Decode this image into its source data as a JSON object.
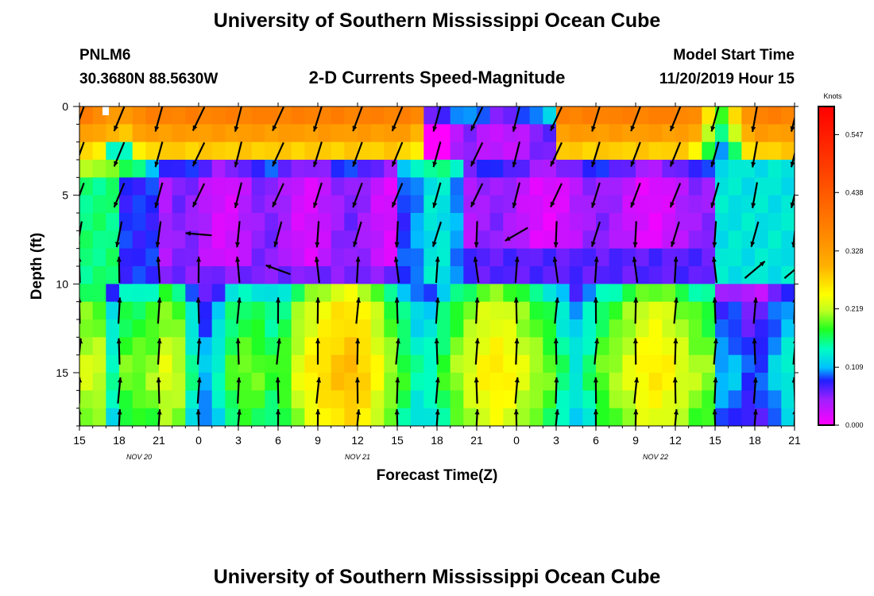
{
  "title_top": "University of Southern Mississippi Ocean Cube",
  "title_bottom": "University of Southern Mississippi Ocean Cube",
  "station": {
    "id": "PNLM6",
    "coords": "30.3680N 88.5630W"
  },
  "model": {
    "label": "Model Start Time",
    "start": "11/20/2019 Hour 15"
  },
  "chart_data": {
    "type": "heatmap",
    "title": "2-D Currents Speed-Magnitude",
    "xlabel": "Forecast Time(Z)",
    "ylabel": "Depth (ft)",
    "x_hours_range": [
      0,
      54
    ],
    "y_range": [
      0,
      18
    ],
    "x_ticks": [
      {
        "h": 0,
        "label": "15"
      },
      {
        "h": 3,
        "label": "18"
      },
      {
        "h": 6,
        "label": "21"
      },
      {
        "h": 9,
        "label": "0"
      },
      {
        "h": 12,
        "label": "3"
      },
      {
        "h": 15,
        "label": "6"
      },
      {
        "h": 18,
        "label": "9"
      },
      {
        "h": 21,
        "label": "12"
      },
      {
        "h": 24,
        "label": "15"
      },
      {
        "h": 27,
        "label": "18"
      },
      {
        "h": 30,
        "label": "21"
      },
      {
        "h": 33,
        "label": "0"
      },
      {
        "h": 36,
        "label": "3"
      },
      {
        "h": 39,
        "label": "6"
      },
      {
        "h": 42,
        "label": "9"
      },
      {
        "h": 45,
        "label": "12"
      },
      {
        "h": 48,
        "label": "15"
      },
      {
        "h": 51,
        "label": "18"
      },
      {
        "h": 54,
        "label": "21"
      }
    ],
    "date_labels": [
      {
        "h": 4.5,
        "label": "NOV  20"
      },
      {
        "h": 21,
        "label": "NOV  21"
      },
      {
        "h": 43.5,
        "label": "NOV  22"
      }
    ],
    "y_ticks": [
      {
        "v": 0,
        "label": "0"
      },
      {
        "v": 5,
        "label": "5"
      },
      {
        "v": 10,
        "label": "10"
      },
      {
        "v": 15,
        "label": "15"
      }
    ],
    "colorbar": {
      "unit": "Knots",
      "min": 0.0,
      "max": 0.6,
      "tick_values": [
        0.0,
        0.109,
        0.219,
        0.328,
        0.438,
        0.547
      ],
      "tick_labels": [
        "0.000",
        "0.109",
        "0.219",
        "0.328",
        "0.438",
        "0.547"
      ]
    },
    "depth_levels": [
      0,
      0.5,
      1.5,
      2.5,
      3.5,
      4.5,
      5.5,
      6.5,
      7.5,
      8.5,
      9.5,
      10.5,
      11.5,
      12.5,
      13.5,
      14.5,
      15.5,
      16.5,
      17.5
    ],
    "vector_depths": [
      0.7,
      2.7,
      5.0,
      7.2,
      9.2,
      11.5,
      13.8,
      16.0,
      17.8
    ]
  }
}
